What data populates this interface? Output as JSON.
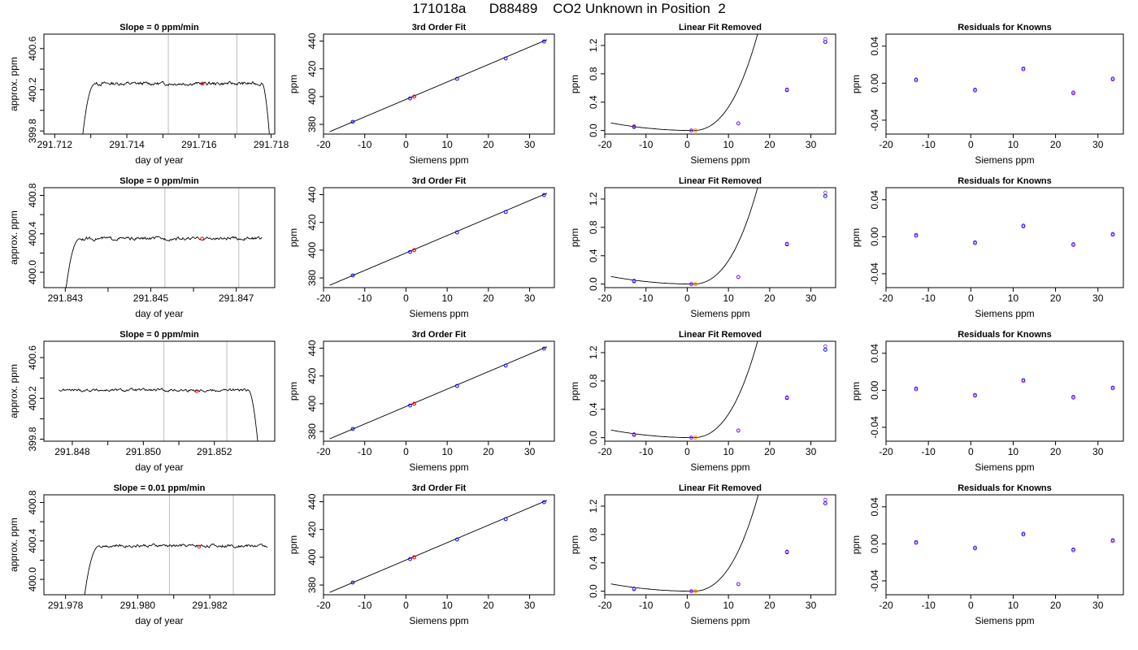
{
  "title": "171018a      D88489    CO2 Unknown in Position  2",
  "colors": {
    "trace": "#000000",
    "marker_red": "#ff0000",
    "marker_blue": "#0000ff",
    "marker_purple": "#a020f0",
    "marker_orange": "#ff8c00",
    "window_lines": "#bebebe"
  },
  "chart_data": [
    {
      "row": 1,
      "type": "line",
      "title": "Slope =  0  ppm/min",
      "xlabel": "day of year",
      "ylabel": "approx. ppm",
      "xlim": [
        291.7117,
        291.7181
      ],
      "ylim": [
        399.77,
        400.74
      ],
      "xticks": [
        291.712,
        291.714,
        291.716,
        291.718
      ],
      "xtick_labels": [
        "291.712",
        "291.714",
        "291.716",
        "291.718"
      ],
      "yticks": [
        399.8,
        400.2,
        400.6
      ],
      "ytick_labels": [
        "399.8",
        "400.2",
        "400.6"
      ],
      "trace": {
        "start": 291.71278,
        "end": 291.71795,
        "rise_end": 291.71313,
        "fall_start": 291.71775,
        "plateau": 400.26,
        "low": 399.77,
        "noise": 0.012
      },
      "window": [
        291.71515,
        291.71705
      ],
      "marker": {
        "x": 291.7161,
        "y": 400.26
      }
    },
    {
      "row": 1,
      "type": "scatter",
      "title": "3rd Order Fit",
      "xlabel": "Siemens ppm",
      "ylabel": "ppm",
      "xlim": [
        -20,
        36
      ],
      "ylim": [
        373,
        445
      ],
      "xticks": [
        -20,
        -10,
        0,
        10,
        20,
        30
      ],
      "xtick_labels": [
        "-20",
        "-10",
        "0",
        "10",
        "20",
        "30"
      ],
      "yticks": [
        380,
        400,
        420,
        440
      ],
      "ytick_labels": [
        "380",
        "400",
        "420",
        "440"
      ],
      "knowns_x": [
        -12.9,
        1.0,
        12.4,
        24.2,
        33.5
      ],
      "knowns_y": [
        381.8,
        398.7,
        412.8,
        427.5,
        439.7
      ],
      "unknown": {
        "x": 2.0,
        "y": 400.0
      },
      "fit": {
        "type": "linear",
        "x0": -18.5,
        "x1": 34.2,
        "y0": 374.7,
        "y1": 441.0
      }
    },
    {
      "row": 1,
      "type": "scatter",
      "title": "Linear Fit Removed",
      "xlabel": "Siemens ppm",
      "ylabel": "ppm",
      "xlim": [
        -20,
        36
      ],
      "ylim": [
        -0.05,
        1.36
      ],
      "xticks": [
        -20,
        -10,
        0,
        10,
        20,
        30
      ],
      "xtick_labels": [
        "-20",
        "-10",
        "0",
        "10",
        "20",
        "30"
      ],
      "yticks": [
        0.0,
        0.4,
        0.8,
        1.2
      ],
      "ytick_labels": [
        "0.0",
        "0.4",
        "0.8",
        "1.2"
      ],
      "knowns_x": [
        -12.9,
        1.0,
        12.4,
        24.2,
        33.5
      ],
      "knowns_y": [
        0.05,
        0.0,
        0.1,
        0.57,
        1.25
      ],
      "knowns_y_alt": [
        0.06,
        0.0,
        0.1,
        0.58,
        1.29
      ],
      "unknown": {
        "x": 2.0,
        "y": 0.0
      },
      "curve": {
        "x0": -18.5,
        "x1": 34.2,
        "a": 0.00335,
        "b": 1.45e-05,
        "c": 1.5
      }
    },
    {
      "row": 1,
      "type": "scatter",
      "title": "Residuals for Knowns",
      "xlabel": "Siemens ppm",
      "ylabel": "ppm",
      "xlim": [
        -20,
        36
      ],
      "ylim": [
        -0.055,
        0.053
      ],
      "xticks": [
        -20,
        -10,
        0,
        10,
        20,
        30
      ],
      "xtick_labels": [
        "-20",
        "-10",
        "0",
        "10",
        "20",
        "30"
      ],
      "yticks": [
        -0.04,
        0.0,
        0.04
      ],
      "ytick_labels": [
        "-0.04",
        "0.00",
        "0.04"
      ],
      "knowns_x": [
        -12.9,
        1.0,
        12.4,
        24.2,
        33.5
      ],
      "knowns_y": [
        0.003,
        -0.008,
        0.015,
        -0.011,
        0.004
      ]
    },
    {
      "row": 2,
      "type": "line",
      "title": "Slope =  0  ppm/min",
      "xlabel": "day of year",
      "ylabel": "approx. ppm",
      "xlim": [
        291.8425,
        291.8479
      ],
      "ylim": [
        399.84,
        400.88
      ],
      "xticks": [
        291.843,
        291.845,
        291.847
      ],
      "xtick_labels": [
        "291.843",
        "291.845",
        "291.847"
      ],
      "yticks": [
        400.0,
        400.4,
        400.8
      ],
      "ytick_labels": [
        "400.0",
        "400.4",
        "400.8"
      ],
      "trace": {
        "start": 291.84302,
        "end": 291.8476,
        "rise_end": 291.84335,
        "fall_start": 0,
        "plateau": 400.35,
        "low": 399.84,
        "noise": 0.012
      },
      "window": [
        291.84533,
        291.84706
      ],
      "marker": {
        "x": 291.8462,
        "y": 400.35
      }
    },
    {
      "row": 2,
      "type": "scatter",
      "title": "3rd Order Fit",
      "xlabel": "Siemens ppm",
      "ylabel": "ppm",
      "xlim": [
        -20,
        36
      ],
      "ylim": [
        373,
        445
      ],
      "xticks": [
        -20,
        -10,
        0,
        10,
        20,
        30
      ],
      "xtick_labels": [
        "-20",
        "-10",
        "0",
        "10",
        "20",
        "30"
      ],
      "yticks": [
        380,
        400,
        420,
        440
      ],
      "ytick_labels": [
        "380",
        "400",
        "420",
        "440"
      ],
      "knowns_x": [
        -12.9,
        1.0,
        12.4,
        24.2,
        33.5
      ],
      "knowns_y": [
        381.8,
        398.7,
        412.8,
        427.5,
        439.7
      ],
      "unknown": {
        "x": 2.0,
        "y": 400.0
      },
      "fit": {
        "type": "linear",
        "x0": -18.5,
        "x1": 34.2,
        "y0": 374.7,
        "y1": 441.0
      }
    },
    {
      "row": 2,
      "type": "scatter",
      "title": "Linear Fit Removed",
      "xlabel": "Siemens ppm",
      "ylabel": "ppm",
      "xlim": [
        -20,
        36
      ],
      "ylim": [
        -0.05,
        1.36
      ],
      "xticks": [
        -20,
        -10,
        0,
        10,
        20,
        30
      ],
      "xtick_labels": [
        "-20",
        "-10",
        "0",
        "10",
        "20",
        "30"
      ],
      "yticks": [
        0.0,
        0.4,
        0.8,
        1.2
      ],
      "ytick_labels": [
        "0.0",
        "0.4",
        "0.8",
        "1.2"
      ],
      "knowns_x": [
        -12.9,
        1.0,
        12.4,
        24.2,
        33.5
      ],
      "knowns_y": [
        0.04,
        0.0,
        0.1,
        0.56,
        1.24
      ],
      "knowns_y_alt": [
        0.05,
        0.0,
        0.1,
        0.57,
        1.29
      ],
      "unknown": {
        "x": 2.0,
        "y": 0.0
      },
      "curve": {
        "x0": -18.5,
        "x1": 34.2,
        "a": 0.00335,
        "b": 1.45e-05,
        "c": 1.5
      }
    },
    {
      "row": 2,
      "type": "scatter",
      "title": "Residuals for Knowns",
      "xlabel": "Siemens ppm",
      "ylabel": "ppm",
      "xlim": [
        -20,
        36
      ],
      "ylim": [
        -0.055,
        0.053
      ],
      "xticks": [
        -20,
        -10,
        0,
        10,
        20,
        30
      ],
      "xtick_labels": [
        "-20",
        "-10",
        "0",
        "10",
        "20",
        "30"
      ],
      "yticks": [
        -0.04,
        0.0,
        0.04
      ],
      "ytick_labels": [
        "-0.04",
        "0.00",
        "0.04"
      ],
      "knowns_x": [
        -12.9,
        1.0,
        12.4,
        24.2,
        33.5
      ],
      "knowns_y": [
        0.001,
        -0.007,
        0.011,
        -0.009,
        0.002
      ]
    },
    {
      "row": 3,
      "type": "line",
      "title": "Slope =  0  ppm/min",
      "xlabel": "day of year",
      "ylabel": "approx. ppm",
      "xlim": [
        291.8472,
        291.8537
      ],
      "ylim": [
        399.78,
        400.76
      ],
      "xticks": [
        291.848,
        291.85,
        291.852
      ],
      "xtick_labels": [
        "291.848",
        "291.850",
        "291.852"
      ],
      "yticks": [
        399.8,
        400.2,
        400.6
      ],
      "ytick_labels": [
        "399.8",
        "400.2",
        "400.6"
      ],
      "trace": {
        "start": 291.84762,
        "end": 291.85322,
        "rise_end": 0,
        "fall_start": 291.85296,
        "plateau": 400.28,
        "low": 399.78,
        "noise": 0.01
      },
      "window": [
        291.85058,
        291.85235
      ],
      "marker": {
        "x": 291.8515,
        "y": 400.27
      }
    },
    {
      "row": 3,
      "type": "scatter",
      "title": "3rd Order Fit",
      "xlabel": "Siemens ppm",
      "ylabel": "ppm",
      "xlim": [
        -20,
        36
      ],
      "ylim": [
        373,
        445
      ],
      "xticks": [
        -20,
        -10,
        0,
        10,
        20,
        30
      ],
      "xtick_labels": [
        "-20",
        "-10",
        "0",
        "10",
        "20",
        "30"
      ],
      "yticks": [
        380,
        400,
        420,
        440
      ],
      "ytick_labels": [
        "380",
        "400",
        "420",
        "440"
      ],
      "knowns_x": [
        -12.9,
        1.0,
        12.4,
        24.2,
        33.5
      ],
      "knowns_y": [
        381.8,
        398.7,
        412.8,
        427.5,
        439.7
      ],
      "unknown": {
        "x": 2.0,
        "y": 400.0
      },
      "fit": {
        "type": "linear",
        "x0": -18.5,
        "x1": 34.2,
        "y0": 374.7,
        "y1": 441.0
      }
    },
    {
      "row": 3,
      "type": "scatter",
      "title": "Linear Fit Removed",
      "xlabel": "Siemens ppm",
      "ylabel": "ppm",
      "xlim": [
        -20,
        36
      ],
      "ylim": [
        -0.05,
        1.36
      ],
      "xticks": [
        -20,
        -10,
        0,
        10,
        20,
        30
      ],
      "xtick_labels": [
        "-20",
        "-10",
        "0",
        "10",
        "20",
        "30"
      ],
      "yticks": [
        0.0,
        0.4,
        0.8,
        1.2
      ],
      "ytick_labels": [
        "0.0",
        "0.4",
        "0.8",
        "1.2"
      ],
      "knowns_x": [
        -12.9,
        1.0,
        12.4,
        24.2,
        33.5
      ],
      "knowns_y": [
        0.04,
        0.0,
        0.1,
        0.56,
        1.24
      ],
      "knowns_y_alt": [
        0.05,
        0.0,
        0.1,
        0.57,
        1.29
      ],
      "unknown": {
        "x": 2.0,
        "y": 0.0
      },
      "curve": {
        "x0": -18.5,
        "x1": 34.2,
        "a": 0.00335,
        "b": 1.45e-05,
        "c": 1.5
      }
    },
    {
      "row": 3,
      "type": "scatter",
      "title": "Residuals for Knowns",
      "xlabel": "Siemens ppm",
      "ylabel": "ppm",
      "xlim": [
        -20,
        36
      ],
      "ylim": [
        -0.055,
        0.053
      ],
      "xticks": [
        -20,
        -10,
        0,
        10,
        20,
        30
      ],
      "xtick_labels": [
        "-20",
        "-10",
        "0",
        "10",
        "20",
        "30"
      ],
      "yticks": [
        -0.04,
        0.0,
        0.04
      ],
      "ytick_labels": [
        "-0.04",
        "0.00",
        "0.04"
      ],
      "knowns_x": [
        -12.9,
        1.0,
        12.4,
        24.2,
        33.5
      ],
      "knowns_y": [
        0.001,
        -0.006,
        0.01,
        -0.008,
        0.002
      ]
    },
    {
      "row": 4,
      "type": "line",
      "title": "Slope =  0.01  ppm/min",
      "xlabel": "day of year",
      "ylabel": "approx. ppm",
      "xlim": [
        291.9774,
        291.9838
      ],
      "ylim": [
        399.84,
        400.88
      ],
      "xticks": [
        291.978,
        291.98,
        291.982
      ],
      "xtick_labels": [
        "291.978",
        "291.980",
        "291.982"
      ],
      "yticks": [
        400.0,
        400.4,
        400.8
      ],
      "ytick_labels": [
        "400.0",
        "400.4",
        "400.8"
      ],
      "trace": {
        "start": 291.97853,
        "end": 291.9836,
        "rise_end": 291.97895,
        "fall_start": 0,
        "plateau": 400.35,
        "low": 399.84,
        "noise": 0.011
      },
      "window": [
        291.98088,
        291.98265
      ],
      "marker": {
        "x": 291.9817,
        "y": 400.34
      }
    },
    {
      "row": 4,
      "type": "scatter",
      "title": "3rd Order Fit",
      "xlabel": "Siemens ppm",
      "ylabel": "ppm",
      "xlim": [
        -20,
        36
      ],
      "ylim": [
        373,
        445
      ],
      "xticks": [
        -20,
        -10,
        0,
        10,
        20,
        30
      ],
      "xtick_labels": [
        "-20",
        "-10",
        "0",
        "10",
        "20",
        "30"
      ],
      "yticks": [
        380,
        400,
        420,
        440
      ],
      "ytick_labels": [
        "380",
        "400",
        "420",
        "440"
      ],
      "knowns_x": [
        -12.9,
        1.0,
        12.4,
        24.2,
        33.5
      ],
      "knowns_y": [
        381.8,
        398.7,
        412.8,
        427.5,
        439.7
      ],
      "unknown": {
        "x": 2.0,
        "y": 400.0
      },
      "fit": {
        "type": "linear",
        "x0": -18.5,
        "x1": 34.2,
        "y0": 374.7,
        "y1": 441.0
      }
    },
    {
      "row": 4,
      "type": "scatter",
      "title": "Linear Fit Removed",
      "xlabel": "Siemens ppm",
      "ylabel": "ppm",
      "xlim": [
        -20,
        36
      ],
      "ylim": [
        -0.05,
        1.36
      ],
      "xticks": [
        -20,
        -10,
        0,
        10,
        20,
        30
      ],
      "xtick_labels": [
        "-20",
        "-10",
        "0",
        "10",
        "20",
        "30"
      ],
      "yticks": [
        0.0,
        0.4,
        0.8,
        1.2
      ],
      "ytick_labels": [
        "0.0",
        "0.4",
        "0.8",
        "1.2"
      ],
      "knowns_x": [
        -12.9,
        1.0,
        12.4,
        24.2,
        33.5
      ],
      "knowns_y": [
        0.03,
        0.0,
        0.1,
        0.55,
        1.24
      ],
      "knowns_y_alt": [
        0.04,
        0.0,
        0.1,
        0.56,
        1.29
      ],
      "unknown": {
        "x": 2.0,
        "y": 0.0
      },
      "curve": {
        "x0": -18.5,
        "x1": 34.2,
        "a": 0.0032,
        "b": 1.45e-05,
        "c": 1.5
      }
    },
    {
      "row": 4,
      "type": "scatter",
      "title": "Residuals for Knowns",
      "xlabel": "Siemens ppm",
      "ylabel": "ppm",
      "xlim": [
        -20,
        36
      ],
      "ylim": [
        -0.055,
        0.053
      ],
      "xticks": [
        -20,
        -10,
        0,
        10,
        20,
        30
      ],
      "xtick_labels": [
        "-20",
        "-10",
        "0",
        "10",
        "20",
        "30"
      ],
      "yticks": [
        -0.04,
        0.0,
        0.04
      ],
      "ytick_labels": [
        "-0.04",
        "0.00",
        "0.04"
      ],
      "knowns_x": [
        -12.9,
        1.0,
        12.4,
        24.2,
        33.5
      ],
      "knowns_y": [
        0.001,
        -0.005,
        0.01,
        -0.007,
        0.003
      ]
    }
  ]
}
